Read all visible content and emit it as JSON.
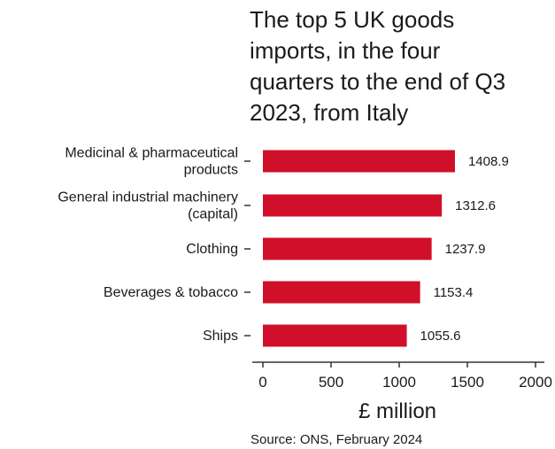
{
  "chart_data": {
    "type": "bar",
    "orientation": "horizontal",
    "title_lines": [
      "The top 5 UK goods",
      "imports, in the four",
      "quarters to the end of Q3",
      "2023, from Italy"
    ],
    "categories": [
      [
        "Medicinal & pharmaceutical",
        "products"
      ],
      [
        "General industrial machinery",
        "(capital)"
      ],
      [
        "Clothing"
      ],
      [
        "Beverages & tobacco"
      ],
      [
        "Ships"
      ]
    ],
    "values": [
      1408.9,
      1312.6,
      1237.9,
      1153.4,
      1055.6
    ],
    "value_labels": [
      "1408.9",
      "1312.6",
      "1237.9",
      "1153.4",
      "1055.6"
    ],
    "xlabel": "£ million",
    "xlim": [
      0,
      2000
    ],
    "xticks": [
      0,
      500,
      1000,
      1500,
      2000
    ],
    "xtick_labels": [
      "0",
      "500",
      "1000",
      "1500",
      "2000"
    ],
    "bar_color": "#d0102a",
    "grid": false,
    "source": "Source: ONS, February 2024"
  }
}
